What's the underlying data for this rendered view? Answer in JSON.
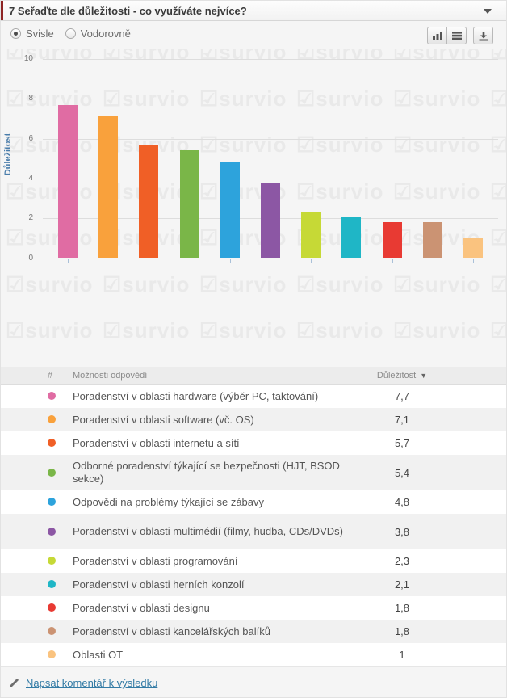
{
  "header": {
    "title": "7 Seřaďte dle důležitosti - co využíváte nejvíce?"
  },
  "controls": {
    "orientation_options": [
      {
        "label": "Svisle",
        "selected": true
      },
      {
        "label": "Vodorovně",
        "selected": false
      }
    ],
    "toolbar": {
      "bar_chart_button_icon": "bar-chart-icon",
      "list_button_icon": "horizontal-bars-icon",
      "download_button_icon": "download-icon"
    }
  },
  "watermark": {
    "check_glyph": "☑",
    "logo_text": "survio"
  },
  "chart_data": {
    "type": "bar",
    "title": "",
    "xlabel": "",
    "ylabel": "Důležitost",
    "ylim": [
      0,
      10
    ],
    "yticks": [
      0,
      2,
      4,
      6,
      8,
      10
    ],
    "grid": true,
    "legend": false,
    "categories": [
      "Poradenství v oblasti hardware (výběr PC, taktování)",
      "Poradenství v oblasti software (vč. OS)",
      "Poradenství v oblasti internetu a sítí",
      "Odborné poradenství týkající se bezpečnosti (HJT, BSOD sekce)",
      "Odpovědi na problémy týkající se zábavy",
      "Poradenství v oblasti multimédií (filmy, hudba, CDs/DVDs)",
      "Poradenství v oblasti programování",
      "Poradenství v oblasti herních konzolí",
      "Poradenství v oblasti designu",
      "Poradenství v oblasti kancelářských balíků",
      "Oblasti OT"
    ],
    "values": [
      7.7,
      7.1,
      5.7,
      5.4,
      4.8,
      3.8,
      2.3,
      2.1,
      1.8,
      1.8,
      1
    ],
    "colors": [
      "#e06ca3",
      "#f9a13c",
      "#f05f26",
      "#7ab648",
      "#2da3dc",
      "#8c57a4",
      "#c6d936",
      "#1fb6c6",
      "#e83a33",
      "#cb9373",
      "#fac37f"
    ]
  },
  "table": {
    "columns": [
      "#",
      "Možnosti odpovědí",
      "Důležitost"
    ],
    "sort_caret": "▼",
    "rows": [
      {
        "color": "#e06ca3",
        "label": "Poradenství v oblasti hardware (výběr PC, taktování)",
        "value": "7,7",
        "two_line": false
      },
      {
        "color": "#f9a13c",
        "label": "Poradenství v oblasti software (vč. OS)",
        "value": "7,1",
        "two_line": false
      },
      {
        "color": "#f05f26",
        "label": "Poradenství v oblasti internetu a sítí",
        "value": "5,7",
        "two_line": false
      },
      {
        "color": "#7ab648",
        "label": "Odborné poradenství týkající se bezpečnosti (HJT, BSOD sekce)",
        "value": "5,4",
        "two_line": true
      },
      {
        "color": "#2da3dc",
        "label": "Odpovědi na problémy týkající se zábavy",
        "value": "4,8",
        "two_line": false
      },
      {
        "color": "#8c57a4",
        "label": "Poradenství v oblasti multimédií (filmy, hudba, CDs/DVDs)",
        "value": "3,8",
        "two_line": true
      },
      {
        "color": "#c6d936",
        "label": "Poradenství v oblasti programování",
        "value": "2,3",
        "two_line": false
      },
      {
        "color": "#1fb6c6",
        "label": "Poradenství v oblasti herních konzolí",
        "value": "2,1",
        "two_line": false
      },
      {
        "color": "#e83a33",
        "label": "Poradenství v oblasti designu",
        "value": "1,8",
        "two_line": false
      },
      {
        "color": "#cb9373",
        "label": "Poradenství v oblasti kancelářských balíků",
        "value": "1,8",
        "two_line": false
      },
      {
        "color": "#fac37f",
        "label": "Oblasti OT",
        "value": "1",
        "two_line": false
      }
    ]
  },
  "footer": {
    "comment_link": "Napsat komentář k výsledku"
  }
}
